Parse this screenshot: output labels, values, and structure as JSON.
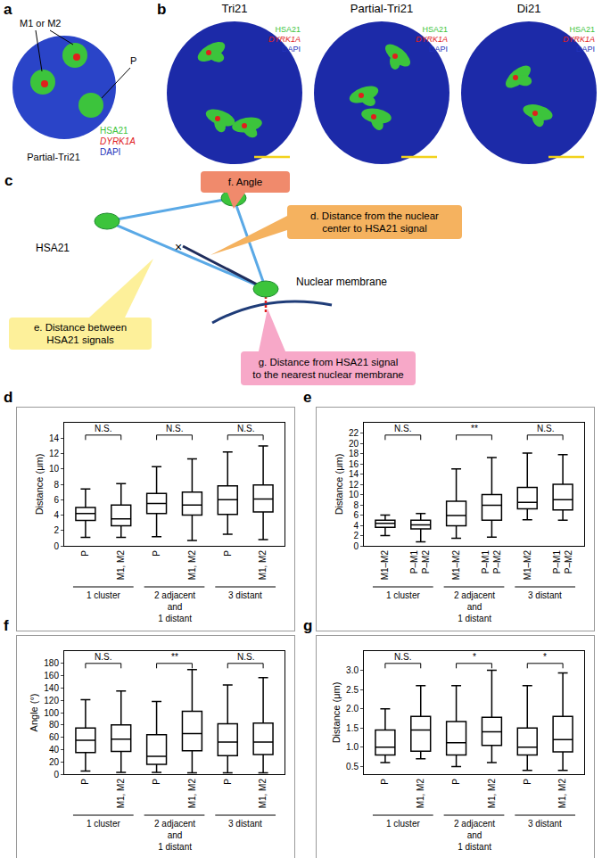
{
  "panels": {
    "channels": [
      {
        "text": "HSA21",
        "color": "#3cc43c",
        "italic": false
      },
      {
        "text": "DYRK1A",
        "color": "#e0201c",
        "italic": true
      },
      {
        "text": "DAPI",
        "color": "#2233bb",
        "italic": false
      }
    ],
    "a": {
      "label": "a",
      "title": "Partial-Tri21",
      "callout_m": "M1 or M2",
      "callout_p": "P"
    },
    "b": {
      "label": "b",
      "images": [
        "Tri21",
        "Partial-Tri21",
        "Di21"
      ]
    },
    "c": {
      "label": "c",
      "signal": "HSA21",
      "center_mark": "×",
      "membrane": "Nuclear membrane",
      "measures": [
        {
          "id": "f",
          "text": "f. Angle",
          "color": "#f08a6c"
        },
        {
          "id": "d",
          "text": "d. Distance from the nuclear\ncenter to HSA21 signal",
          "color": "#f5b25f"
        },
        {
          "id": "e",
          "text": "e. Distance between\nHSA21 signals",
          "color": "#fdf09a"
        },
        {
          "id": "g",
          "text": "g. Distance from HSA21 signal\nto the nearest nuclear membrane",
          "color": "#f7a8c8"
        }
      ]
    }
  },
  "chart_data": [
    {
      "panel": "d",
      "type": "box",
      "ylabel": "Distance (μm)",
      "ylim": [
        0,
        16
      ],
      "yticks": [
        0,
        2,
        4,
        6,
        8,
        10,
        12,
        14
      ],
      "grid": false,
      "color": "#000000",
      "categories": [
        "P",
        "M1, M2",
        "P",
        "M1, M2",
        "P",
        "M1, M2"
      ],
      "groups": [
        "1 cluster",
        "2 adjacent\nand\n1 distant",
        "3 distant"
      ],
      "q1": [
        3.3,
        2.6,
        4.2,
        4.0,
        4.1,
        4.4
      ],
      "median": [
        4.2,
        3.5,
        5.5,
        5.3,
        6.0,
        6.1
      ],
      "q3": [
        5.0,
        5.3,
        6.8,
        7.0,
        7.8,
        7.9
      ],
      "lower": [
        1.1,
        1.1,
        1.2,
        0.7,
        1.5,
        0.8
      ],
      "upper": [
        7.4,
        8.1,
        10.3,
        11.3,
        12.2,
        13.0
      ],
      "significance": [
        "N.S.",
        "N.S.",
        "N.S."
      ]
    },
    {
      "panel": "e",
      "type": "box",
      "ylabel": "Distance (μm)",
      "ylim": [
        0,
        24
      ],
      "yticks": [
        0,
        2,
        4,
        6,
        8,
        10,
        12,
        14,
        16,
        18,
        20,
        22
      ],
      "grid": false,
      "color": "#000000",
      "categories": [
        "M1–M2",
        "P–M1\nP–M2",
        "M1–M2",
        "P–M1\nP–M2",
        "M1–M2",
        "P–M1\nP–M2"
      ],
      "groups": [
        "1 cluster",
        "2 adjacent\nand\n1 distant",
        "3 distant"
      ],
      "q1": [
        3.6,
        3.3,
        3.9,
        5.0,
        7.2,
        7.0
      ],
      "median": [
        4.4,
        4.1,
        5.9,
        7.9,
        8.5,
        9.0
      ],
      "q3": [
        5.0,
        5.0,
        8.7,
        10.0,
        11.4,
        12.0
      ],
      "lower": [
        2.0,
        0.8,
        1.5,
        1.7,
        5.1,
        5.0
      ],
      "upper": [
        6.0,
        6.3,
        15.0,
        17.2,
        18.1,
        17.8
      ],
      "significance": [
        "N.S.",
        "**",
        "N.S."
      ]
    },
    {
      "panel": "f",
      "type": "box",
      "ylabel": "Angle (°)",
      "ylim": [
        0,
        200
      ],
      "yticks": [
        0,
        20,
        40,
        60,
        80,
        100,
        120,
        140,
        160,
        180
      ],
      "grid": false,
      "color": "#000000",
      "categories": [
        "P",
        "M1, M2",
        "P",
        "M1, M2",
        "P",
        "M1, M2"
      ],
      "groups": [
        "1 cluster",
        "2 adjacent\nand\n1 distant",
        "3 distant"
      ],
      "q1": [
        35,
        37,
        16,
        38,
        30,
        32
      ],
      "median": [
        55,
        57,
        29,
        66,
        52,
        52
      ],
      "q3": [
        75,
        80,
        64,
        102,
        82,
        83
      ],
      "lower": [
        5,
        3,
        3,
        2,
        2,
        2
      ],
      "upper": [
        121,
        135,
        118,
        170,
        145,
        157
      ],
      "significance": [
        "N.S.",
        "**",
        "N.S."
      ]
    },
    {
      "panel": "g",
      "type": "box",
      "ylabel": "Distance (μm)",
      "ylim": [
        0.3,
        3.5
      ],
      "yticks": [
        0.5,
        {
          "value": 1,
          "label": "1.0"
        },
        1.5,
        {
          "value": 2,
          "label": "2.0"
        },
        2.5,
        {
          "value": 3,
          "label": "3.0"
        }
      ],
      "grid": false,
      "color": "#000000",
      "categories": [
        "P",
        "M1, M2",
        "P",
        "M1, M2",
        "P",
        "M1, M2"
      ],
      "groups": [
        "1 cluster",
        "2 adjacent\nand\n1 distant",
        "3 distant"
      ],
      "q1": [
        0.8,
        0.9,
        0.8,
        1.05,
        0.8,
        0.88
      ],
      "median": [
        1.0,
        1.45,
        1.12,
        1.4,
        1.0,
        1.2
      ],
      "q3": [
        1.45,
        1.8,
        1.67,
        1.78,
        1.5,
        1.8
      ],
      "lower": [
        0.6,
        0.7,
        0.5,
        0.6,
        0.4,
        0.4
      ],
      "upper": [
        2.0,
        2.6,
        2.6,
        3.0,
        2.6,
        2.93
      ],
      "significance": [
        "N.S.",
        "*",
        "*"
      ]
    }
  ]
}
